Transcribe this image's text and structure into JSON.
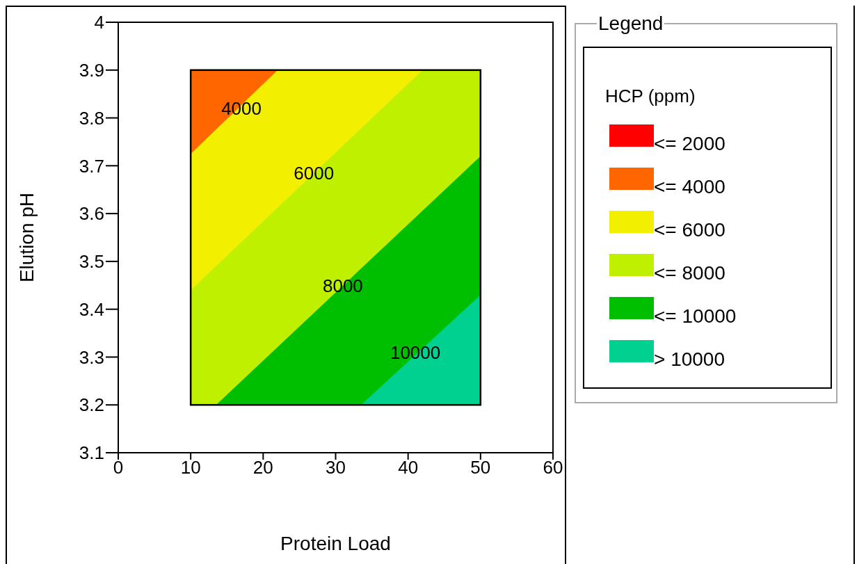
{
  "chart_data": {
    "type": "area",
    "xlabel": "Protein Load",
    "ylabel": "Elution pH",
    "legend_title": "HCP (ppm)",
    "legend": "right",
    "xlim": [
      0,
      60
    ],
    "xticks": [
      0,
      10,
      20,
      30,
      40,
      50,
      60
    ],
    "ylim": [
      3.1,
      4.0
    ],
    "yticks": [
      3.1,
      3.2,
      3.3,
      3.4,
      3.5,
      3.6,
      3.7,
      3.8,
      3.9,
      4.0
    ],
    "series": [
      {
        "name": "<= 2000",
        "color": "#ff0000"
      },
      {
        "name": "<= 4000",
        "color": "#ff6600",
        "x": [
          10,
          22
        ],
        "values": [
          3.9,
          3.9
        ]
      },
      {
        "name": "<= 6000",
        "color": "#f2f000",
        "x": [
          10,
          22,
          42
        ],
        "values": [
          3.725,
          3.9,
          3.9
        ]
      },
      {
        "name": "<= 8000",
        "color": "#bff000",
        "x": [
          10,
          42,
          50
        ],
        "values": [
          3.44,
          3.9,
          3.9
        ]
      },
      {
        "name": "<= 10000",
        "color": "#00bf00",
        "x": [
          10,
          13.5,
          50
        ],
        "values": [
          3.2,
          3.2,
          3.72
        ]
      },
      {
        "name": "> 10000",
        "color": "#00d090",
        "x": [
          33.5,
          50
        ],
        "values": [
          3.2,
          3.43
        ]
      }
    ],
    "annotations": [
      "Legend",
      {
        "text": "4000",
        "x": 17,
        "y": 3.82
      },
      {
        "text": "6000",
        "x": 27,
        "y": 3.684
      },
      {
        "text": "8000",
        "x": 31,
        "y": 3.449
      },
      {
        "text": "10000",
        "x": 41,
        "y": 3.31
      }
    ]
  }
}
